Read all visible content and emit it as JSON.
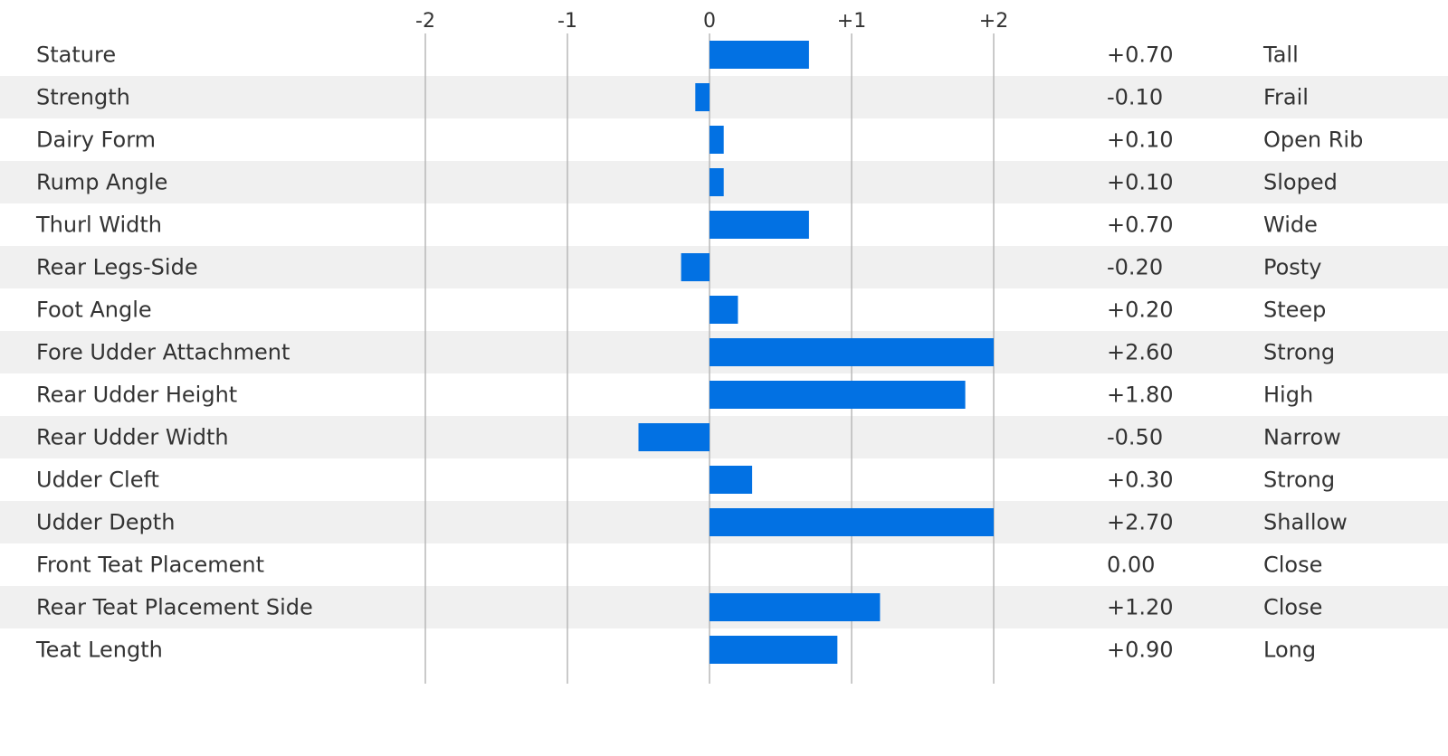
{
  "chart_data": {
    "type": "bar",
    "orientation": "horizontal",
    "xlim": [
      -2,
      2
    ],
    "x_ticks": [
      -2,
      -1,
      0,
      1,
      2
    ],
    "x_tick_labels": [
      "-2",
      "-1",
      "0",
      "+1",
      "+2"
    ],
    "bar_color": "#0271e3",
    "alt_row_color": "#f0f0f0",
    "grid": true,
    "categories": [
      "Stature",
      "Strength",
      "Dairy Form",
      "Rump Angle",
      "Thurl Width",
      "Rear Legs-Side",
      "Foot Angle",
      "Fore Udder Attachment",
      "Rear Udder Height",
      "Rear Udder Width",
      "Udder Cleft",
      "Udder Depth",
      "Front Teat Placement",
      "Rear Teat Placement Side",
      "Teat Length"
    ],
    "values": [
      0.7,
      -0.1,
      0.1,
      0.1,
      0.7,
      -0.2,
      0.2,
      2.6,
      1.8,
      -0.5,
      0.3,
      2.7,
      0.0,
      1.2,
      0.9
    ],
    "value_labels": [
      "+0.70",
      "-0.10",
      "+0.10",
      "+0.10",
      "+0.70",
      "-0.20",
      "+0.20",
      "+2.60",
      "+1.80",
      "-0.50",
      "+0.30",
      "+2.70",
      "0.00",
      "+1.20",
      "+0.90"
    ],
    "descriptors": [
      "Tall",
      "Frail",
      "Open Rib",
      "Sloped",
      "Wide",
      "Posty",
      "Steep",
      "Strong",
      "High",
      "Narrow",
      "Strong",
      "Shallow",
      "Close",
      "Close",
      "Long"
    ]
  }
}
